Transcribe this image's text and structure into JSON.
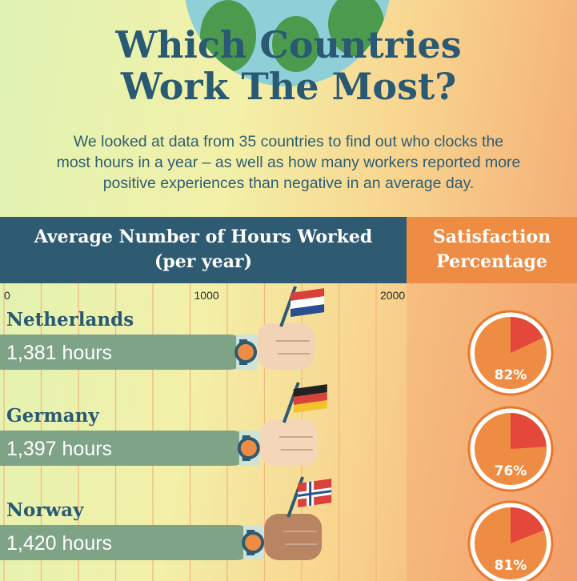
{
  "title_line1": "Which Countries",
  "title_line2": "Work The Most?",
  "subtitle_line1": "We looked at data from 35 countries to find out who clocks the",
  "subtitle_line2": "most hours in a year – as well as how many workers reported more",
  "subtitle_line3": "positive experiences than negative in an average day.",
  "header_hours_line1": "Average Number of Hours Worked",
  "header_hours_line2": "(per year)",
  "header_sat_line1": "Satisfaction",
  "header_sat_line2": "Percentage",
  "colors": {
    "header_hours": "#2e5a72",
    "header_sat": "#ed8c42",
    "bar": "#7ea387",
    "pie_main": "#ed8c42",
    "pie_slice": "#e4483a",
    "title": "#2a5973"
  },
  "chart_data": {
    "type": "bar",
    "orientation": "horizontal",
    "x_ticks": [
      "0",
      "1000",
      "2000"
    ],
    "xlim": [
      0,
      2000
    ],
    "categories": [
      "Netherlands",
      "Germany",
      "Norway"
    ],
    "values": [
      1381,
      1397,
      1420
    ],
    "value_labels": [
      "1,381 hours",
      "1,397 hours",
      "1,420 hours"
    ],
    "satisfaction": [
      82,
      76,
      81
    ],
    "satisfaction_labels": [
      "82%",
      "76%",
      "81%"
    ],
    "flags": [
      "netherlands-flag",
      "germany-flag",
      "norway-flag"
    ]
  }
}
